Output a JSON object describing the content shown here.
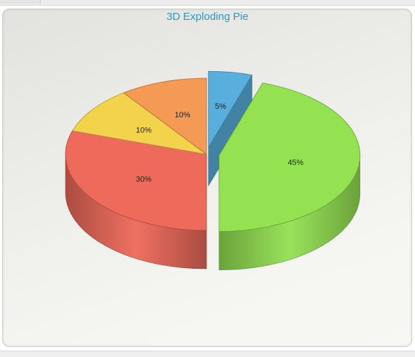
{
  "chart_data": {
    "type": "pie",
    "title": "3D Exploding Pie",
    "slices": [
      {
        "label": "5%",
        "value": 5,
        "color": "#58aedc",
        "exploded": true
      },
      {
        "label": "45%",
        "value": 45,
        "color": "#94e152",
        "exploded": true
      },
      {
        "label": "30%",
        "value": 30,
        "color": "#ee6a5a",
        "exploded": false
      },
      {
        "label": "10%",
        "value": 10,
        "color": "#f4d34c",
        "exploded": false
      },
      {
        "label": "10%",
        "value": 10,
        "color": "#f59a55",
        "exploded": false
      }
    ]
  }
}
